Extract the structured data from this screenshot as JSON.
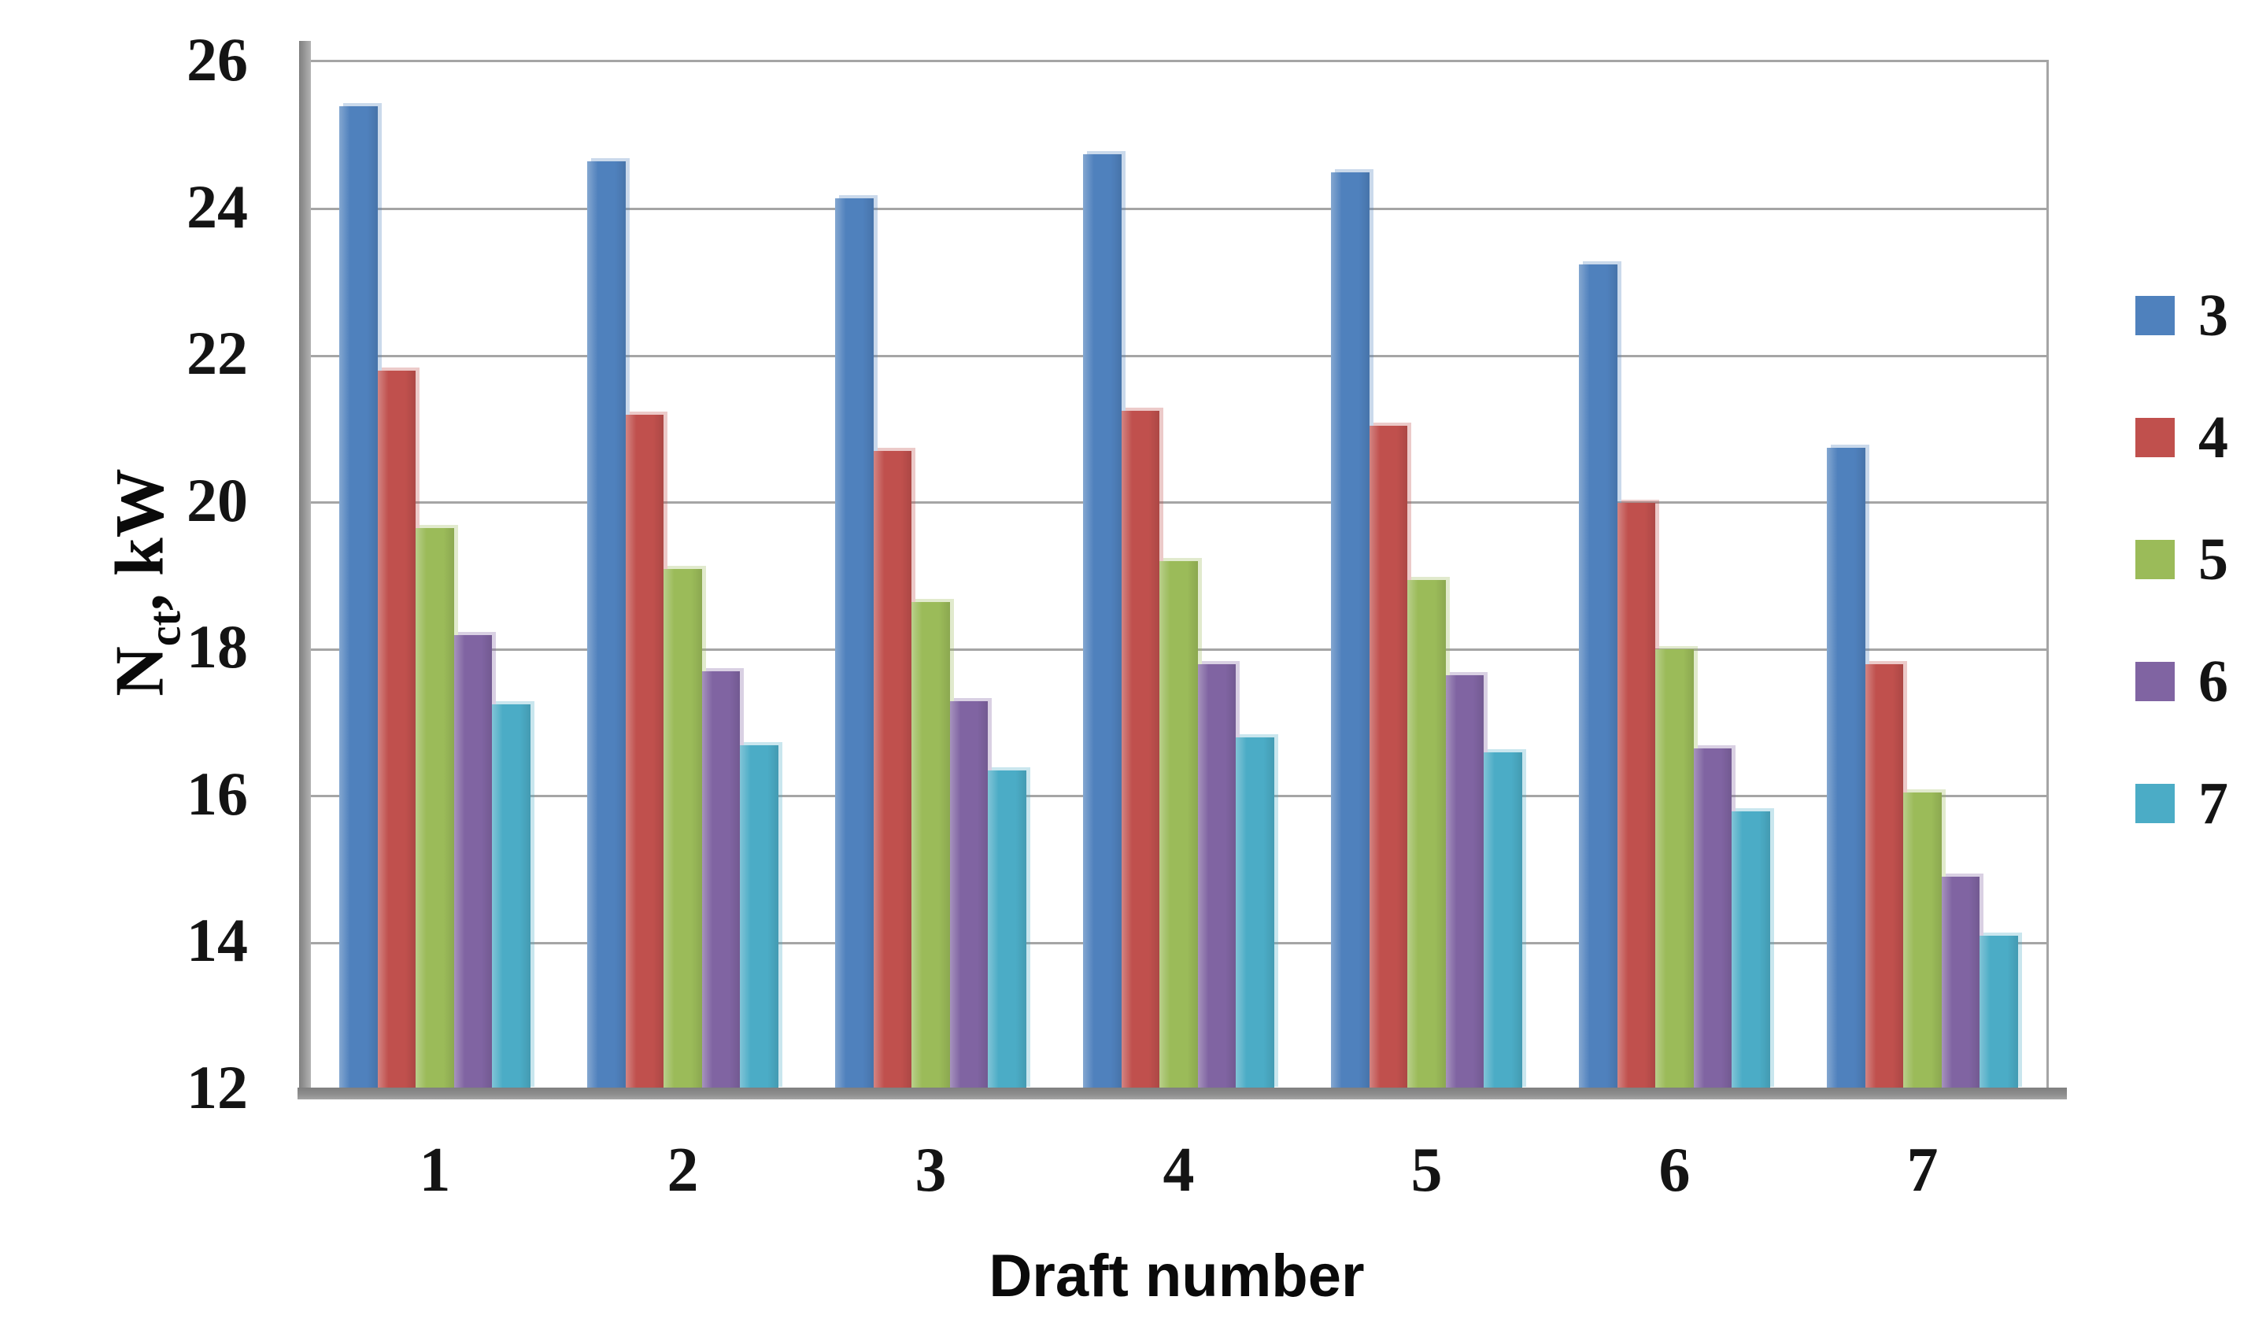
{
  "axes": {
    "y_title": {
      "base": "N",
      "subscript": "ct",
      "suffix": ", kW"
    },
    "x_title": "Draft number"
  },
  "colors": {
    "gridline": "#a5a5a5",
    "axis_wall": "#8f8f8f",
    "background": "#ffffff",
    "text": "#141414"
  },
  "chart_data": {
    "type": "bar",
    "title": "",
    "xlabel": "Draft number",
    "ylabel": "Nct, kW",
    "categories": [
      "1",
      "2",
      "3",
      "4",
      "5",
      "6",
      "7"
    ],
    "series": [
      {
        "name": "3",
        "color": "#4F81BD",
        "values": [
          25.4,
          24.65,
          24.15,
          24.75,
          24.5,
          23.25,
          20.75
        ]
      },
      {
        "name": "4",
        "color": "#C0504D",
        "values": [
          21.8,
          21.2,
          20.7,
          21.25,
          21.05,
          20.0,
          17.8
        ]
      },
      {
        "name": "5",
        "color": "#9BBB59",
        "values": [
          19.65,
          19.1,
          18.65,
          19.2,
          18.95,
          18.0,
          16.05
        ]
      },
      {
        "name": "6",
        "color": "#8064A2",
        "values": [
          18.2,
          17.7,
          17.3,
          17.8,
          17.65,
          16.65,
          14.9
        ]
      },
      {
        "name": "7",
        "color": "#4BACC6",
        "values": [
          17.25,
          16.7,
          16.35,
          16.8,
          16.6,
          15.8,
          14.1
        ]
      }
    ],
    "ylim": [
      12,
      26
    ],
    "yticks": [
      26,
      24,
      22,
      20,
      18,
      16,
      14,
      12
    ],
    "grid": true,
    "legend_position": "right"
  }
}
